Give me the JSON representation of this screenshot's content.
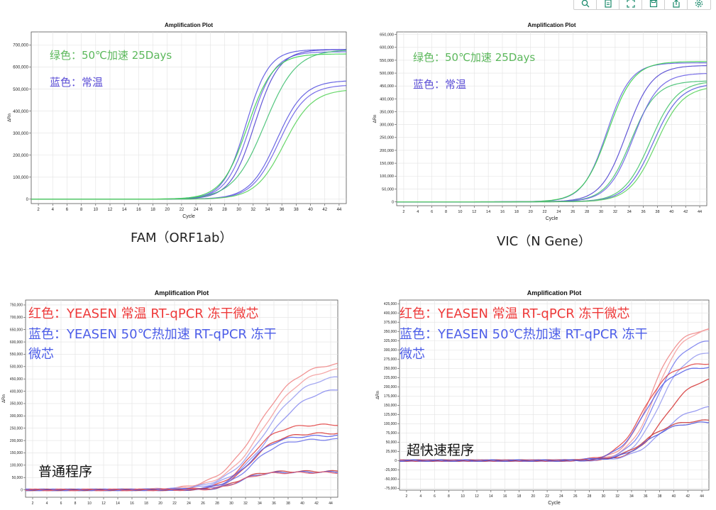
{
  "toolbar": {
    "icons": [
      "zoom-icon",
      "document-icon",
      "fullscreen-icon",
      "save-icon",
      "export-icon",
      "settings-icon"
    ],
    "color": "#1a8a6c"
  },
  "captions": {
    "fam": "FAM（ORF1ab）",
    "vic": "VIC（N Gene）"
  },
  "chart_data": [
    {
      "type": "line",
      "title": "Amplification Plot",
      "xlabel": "Cycle",
      "ylabel": "ΔRn",
      "xlim": [
        1,
        45
      ],
      "ylim": [
        -20000,
        760000
      ],
      "xticks": [
        2,
        4,
        6,
        8,
        10,
        12,
        14,
        16,
        18,
        20,
        22,
        24,
        26,
        28,
        30,
        32,
        34,
        36,
        38,
        40,
        42,
        44
      ],
      "yticks": [
        0,
        100000,
        200000,
        300000,
        400000,
        500000,
        600000,
        700000
      ],
      "ytick_labels": [
        "0",
        "100,000",
        "200,000",
        "300,000",
        "400,000",
        "500,000",
        "600,000",
        "700,000"
      ],
      "grid": true,
      "caption": "FAM（ORF1ab）",
      "annotations": [
        {
          "text": "绿色：50℃加速 25Days",
          "color": "#5cb85c"
        },
        {
          "text": "蓝色：常温",
          "color": "#5c4fd6"
        }
      ],
      "series": [
        {
          "group": "蓝色",
          "color": "#5a55e0",
          "ct": 31.0,
          "plateau": 680000,
          "slope": 1.6
        },
        {
          "group": "蓝色",
          "color": "#6a5fe6",
          "ct": 31.6,
          "plateau": 670000,
          "slope": 1.7
        },
        {
          "group": "蓝色",
          "color": "#5145d2",
          "ct": 32.2,
          "plateau": 680000,
          "slope": 1.7
        },
        {
          "group": "蓝色",
          "color": "#5a55e0",
          "ct": 35.3,
          "plateau": 540000,
          "slope": 1.9
        },
        {
          "group": "蓝色",
          "color": "#6a5fe6",
          "ct": 35.6,
          "plateau": 520000,
          "slope": 1.9
        },
        {
          "group": "绿色",
          "color": "#3ad24f",
          "ct": 31.2,
          "plateau": 660000,
          "slope": 1.8
        },
        {
          "group": "绿色",
          "color": "#40c070",
          "ct": 33.6,
          "plateau": 680000,
          "slope": 2.2
        },
        {
          "group": "绿色",
          "color": "#58d35a",
          "ct": 36.3,
          "plateau": 500000,
          "slope": 2.0
        }
      ]
    },
    {
      "type": "line",
      "title": "Amplification Plot",
      "xlabel": "Cycle",
      "ylabel": "ΔRn",
      "xlim": [
        1,
        45
      ],
      "ylim": [
        -15000,
        660000
      ],
      "xticks": [
        2,
        4,
        6,
        8,
        10,
        12,
        14,
        16,
        18,
        20,
        22,
        24,
        26,
        28,
        30,
        32,
        34,
        36,
        38,
        40,
        42,
        44
      ],
      "yticks": [
        0,
        50000,
        100000,
        150000,
        200000,
        250000,
        300000,
        350000,
        400000,
        450000,
        500000,
        550000,
        600000,
        650000
      ],
      "ytick_labels": [
        "0",
        "50,000",
        "100,000",
        "150,000",
        "200,000",
        "250,000",
        "300,000",
        "350,000",
        "400,000",
        "450,000",
        "500,000",
        "550,000",
        "600,000",
        "650,000"
      ],
      "grid": true,
      "caption": "VIC（N Gene）",
      "annotations": [
        {
          "text": "绿色：50℃加速 25Days",
          "color": "#5cb85c"
        },
        {
          "text": "蓝色：常温",
          "color": "#5c4fd6"
        }
      ],
      "series": [
        {
          "group": "蓝色",
          "color": "#6a5fe6",
          "ct": 30.8,
          "plateau": 540000,
          "slope": 1.7
        },
        {
          "group": "绿色",
          "color": "#3ad24f",
          "ct": 31.0,
          "plateau": 545000,
          "slope": 1.8
        },
        {
          "group": "蓝色",
          "color": "#5145d2",
          "ct": 33.6,
          "plateau": 530000,
          "slope": 1.8
        },
        {
          "group": "绿色",
          "color": "#40c070",
          "ct": 34.2,
          "plateau": 470000,
          "slope": 1.8
        },
        {
          "group": "蓝色",
          "color": "#6a5fe6",
          "ct": 34.6,
          "plateau": 500000,
          "slope": 1.8
        },
        {
          "group": "绿色",
          "color": "#45c56a",
          "ct": 37.0,
          "plateau": 470000,
          "slope": 1.9
        },
        {
          "group": "蓝色",
          "color": "#5a55e0",
          "ct": 37.4,
          "plateau": 460000,
          "slope": 1.9
        },
        {
          "group": "绿色",
          "color": "#58d35a",
          "ct": 37.8,
          "plateau": 450000,
          "slope": 1.9
        }
      ]
    },
    {
      "type": "line",
      "title": "Amplification Plot",
      "xlabel": "Cycle",
      "ylabel": "ΔRn",
      "xlim": [
        1,
        45
      ],
      "ylim": [
        -30000,
        770000
      ],
      "xticks": [
        2,
        4,
        6,
        8,
        10,
        12,
        14,
        16,
        18,
        20,
        22,
        24,
        26,
        28,
        30,
        32,
        34,
        36,
        38,
        40,
        42,
        44
      ],
      "yticks": [
        0,
        50000,
        100000,
        150000,
        200000,
        250000,
        300000,
        350000,
        400000,
        450000,
        500000,
        550000,
        600000,
        650000,
        700000,
        750000
      ],
      "ytick_labels": [
        "0",
        "50,000",
        "100,000",
        "150,000",
        "200,000",
        "250,000",
        "300,000",
        "350,000",
        "400,000",
        "450,000",
        "500,000",
        "550,000",
        "600,000",
        "650,000",
        "700,000",
        "750,000"
      ],
      "grid": true,
      "annotations": [
        {
          "text": "红色：YEASEN 常温 RT-qPCR 冻干微芯",
          "color": "#ee3a3a"
        },
        {
          "text": "蓝色：YEASEN 50℃热加速 RT-qPCR 冻干微芯",
          "color": "#4d5ee8"
        },
        {
          "text": "普通程序",
          "color": "#111111"
        }
      ],
      "series": [
        {
          "group": "红色",
          "color": "#f08a8a",
          "ct": 33.8,
          "plateau": 520000,
          "slope": 2.8
        },
        {
          "group": "红色",
          "color": "#f4a0a0",
          "ct": 34.5,
          "plateau": 500000,
          "slope": 2.8
        },
        {
          "group": "蓝色",
          "color": "#9a9ef0",
          "ct": 34.8,
          "plateau": 470000,
          "slope": 2.8
        },
        {
          "group": "蓝色",
          "color": "#8c8ff0",
          "ct": 35.2,
          "plateau": 420000,
          "slope": 2.8
        },
        {
          "group": "红色",
          "color": "#e24a4a",
          "ct": 32.6,
          "plateau": 265000,
          "slope": 1.9
        },
        {
          "group": "红色",
          "color": "#d63c3c",
          "ct": 32.8,
          "plateau": 230000,
          "slope": 1.9
        },
        {
          "group": "蓝色",
          "color": "#5a62e8",
          "ct": 32.5,
          "plateau": 220000,
          "slope": 1.9
        },
        {
          "group": "蓝色",
          "color": "#6e74ea",
          "ct": 32.9,
          "plateau": 205000,
          "slope": 1.9
        },
        {
          "group": "红色",
          "color": "#c93a3a",
          "ct": 31.0,
          "plateau": 75000,
          "slope": 1.5
        },
        {
          "group": "蓝色",
          "color": "#5158d8",
          "ct": 31.2,
          "plateau": 72000,
          "slope": 1.5
        },
        {
          "group": "红色",
          "color": "#e06070",
          "ct": 31.1,
          "plateau": 70000,
          "slope": 1.5
        }
      ]
    },
    {
      "type": "line",
      "title": "Amplification Plot",
      "xlabel": "Cycle",
      "ylabel": "ΔRn",
      "xlim": [
        1,
        45
      ],
      "ylim": [
        -80000,
        435000
      ],
      "xticks": [
        2,
        4,
        6,
        8,
        10,
        12,
        14,
        16,
        18,
        20,
        22,
        24,
        26,
        28,
        30,
        32,
        34,
        36,
        38,
        40,
        42,
        44
      ],
      "yticks": [
        -75000,
        -50000,
        -25000,
        0,
        25000,
        50000,
        75000,
        100000,
        125000,
        150000,
        175000,
        200000,
        225000,
        250000,
        275000,
        300000,
        325000,
        350000,
        375000,
        400000,
        425000
      ],
      "ytick_labels": [
        "-75,000",
        "-50,000",
        "-25,000",
        "0",
        "25,000",
        "50,000",
        "75,000",
        "100,000",
        "125,000",
        "150,000",
        "175,000",
        "200,000",
        "225,000",
        "250,000",
        "275,000",
        "300,000",
        "325,000",
        "350,000",
        "375,000",
        "400,000",
        "425,000"
      ],
      "grid": true,
      "annotations": [
        {
          "text": "红色：YEASEN 常温 RT-qPCR 冻干微芯",
          "color": "#ee3a3a"
        },
        {
          "text": "蓝色：YEASEN 50℃热加速 RT-qPCR 冻干微芯",
          "color": "#4d5ee8"
        },
        {
          "text": "超快速程序",
          "color": "#111111"
        }
      ],
      "series": [
        {
          "group": "红色",
          "color": "#f08a8a",
          "ct": 36.8,
          "plateau": 360000,
          "slope": 1.9
        },
        {
          "group": "红色",
          "color": "#f4a0a0",
          "ct": 37.4,
          "plateau": 360000,
          "slope": 1.9
        },
        {
          "group": "蓝色",
          "color": "#7a80ee",
          "ct": 37.5,
          "plateau": 330000,
          "slope": 1.9
        },
        {
          "group": "蓝色",
          "color": "#9a9ef0",
          "ct": 37.9,
          "plateau": 300000,
          "slope": 1.9
        },
        {
          "group": "红色",
          "color": "#e24a4a",
          "ct": 35.6,
          "plateau": 265000,
          "slope": 1.9
        },
        {
          "group": "蓝色",
          "color": "#5a62e8",
          "ct": 35.8,
          "plateau": 255000,
          "slope": 1.9
        },
        {
          "group": "红色",
          "color": "#d63c3c",
          "ct": 38.6,
          "plateau": 230000,
          "slope": 2.1
        },
        {
          "group": "蓝色",
          "color": "#8c8ff0",
          "ct": 38.2,
          "plateau": 150000,
          "slope": 2.1
        },
        {
          "group": "红色",
          "color": "#c93a3a",
          "ct": 36.0,
          "plateau": 110000,
          "slope": 2.0
        },
        {
          "group": "蓝色",
          "color": "#5158d8",
          "ct": 36.2,
          "plateau": 105000,
          "slope": 2.0
        }
      ]
    }
  ]
}
